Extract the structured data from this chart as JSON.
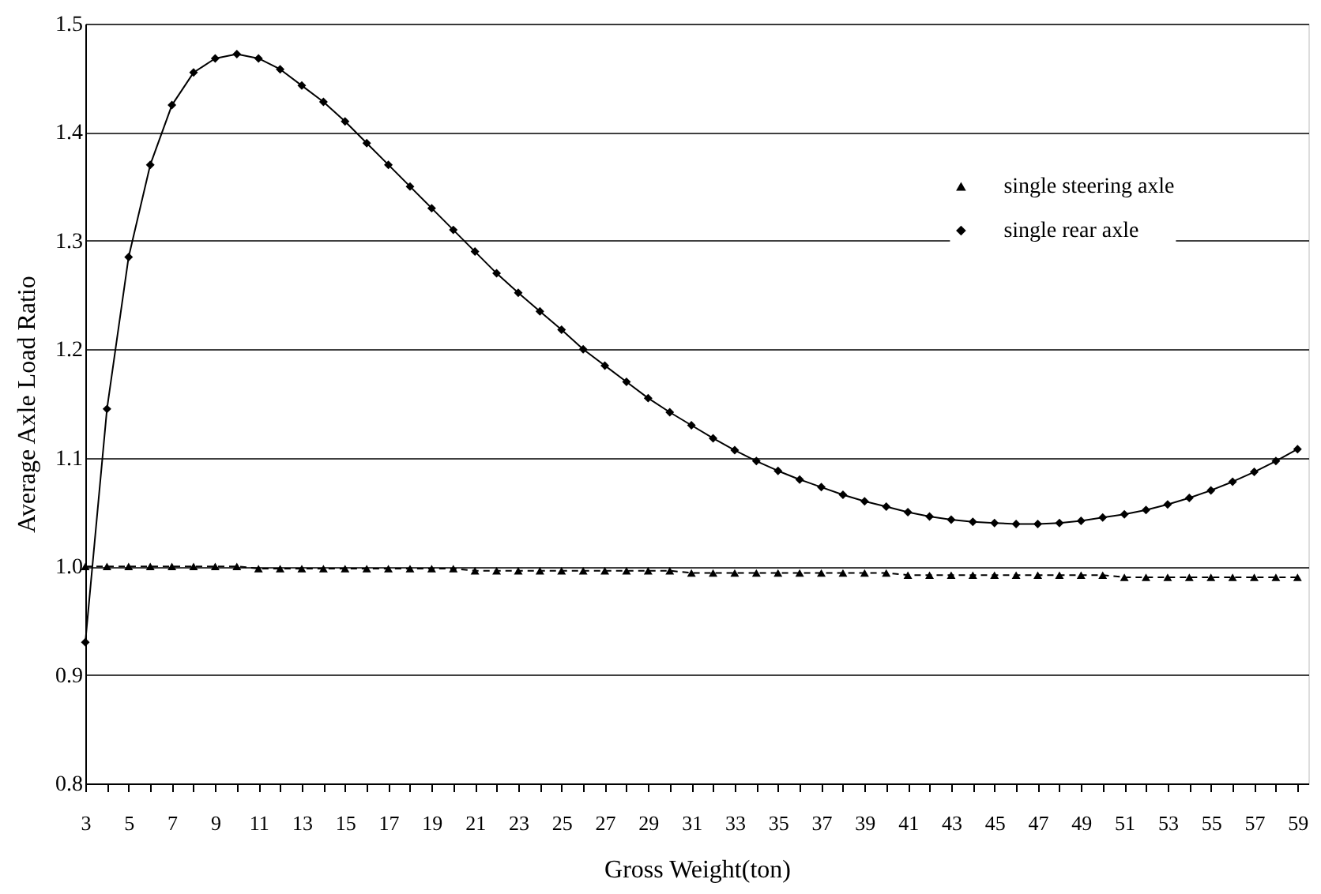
{
  "chart_data": {
    "type": "line",
    "xlabel": "Gross Weight(ton)",
    "ylabel": "Average Axle Load Ratio",
    "x": [
      3,
      4,
      5,
      6,
      7,
      8,
      9,
      10,
      11,
      12,
      13,
      14,
      15,
      16,
      17,
      18,
      19,
      20,
      21,
      22,
      23,
      24,
      25,
      26,
      27,
      28,
      29,
      30,
      31,
      32,
      33,
      34,
      35,
      36,
      37,
      38,
      39,
      40,
      41,
      42,
      43,
      44,
      45,
      46,
      47,
      48,
      49,
      50,
      51,
      52,
      53,
      54,
      55,
      56,
      57,
      58,
      59
    ],
    "series": [
      {
        "name": "single steering axle",
        "color": "#000000",
        "marker": "triangle",
        "line_style": "dashed",
        "values": [
          1.0,
          1.0,
          1.0,
          1.0,
          1.0,
          1.0,
          1.0,
          1.0,
          0.998,
          0.998,
          0.998,
          0.998,
          0.998,
          0.998,
          0.998,
          0.998,
          0.998,
          0.998,
          0.996,
          0.996,
          0.996,
          0.996,
          0.996,
          0.996,
          0.996,
          0.996,
          0.996,
          0.996,
          0.994,
          0.994,
          0.994,
          0.994,
          0.994,
          0.994,
          0.994,
          0.994,
          0.994,
          0.994,
          0.992,
          0.992,
          0.992,
          0.992,
          0.992,
          0.992,
          0.992,
          0.992,
          0.992,
          0.992,
          0.99,
          0.99,
          0.99,
          0.99,
          0.99,
          0.99,
          0.99,
          0.99,
          0.99
        ]
      },
      {
        "name": "single rear axle",
        "color": "#000000",
        "marker": "diamond",
        "line_style": "solid",
        "values": [
          0.93,
          1.145,
          1.285,
          1.37,
          1.425,
          1.455,
          1.468,
          1.472,
          1.468,
          1.458,
          1.443,
          1.428,
          1.41,
          1.39,
          1.37,
          1.35,
          1.33,
          1.31,
          1.29,
          1.27,
          1.252,
          1.235,
          1.218,
          1.2,
          1.185,
          1.17,
          1.155,
          1.142,
          1.13,
          1.118,
          1.107,
          1.097,
          1.088,
          1.08,
          1.073,
          1.066,
          1.06,
          1.055,
          1.05,
          1.046,
          1.043,
          1.041,
          1.04,
          1.039,
          1.039,
          1.04,
          1.042,
          1.045,
          1.048,
          1.052,
          1.057,
          1.063,
          1.07,
          1.078,
          1.087,
          1.097,
          1.108
        ]
      }
    ],
    "xlim": [
      3,
      59.5
    ],
    "xticks": [
      3,
      {
        "value": 4,
        "label": null
      },
      5,
      {
        "value": 6,
        "label": null
      },
      7,
      {
        "value": 8,
        "label": null
      },
      9,
      {
        "value": 10,
        "label": null
      },
      11,
      {
        "value": 12,
        "label": null
      },
      13,
      {
        "value": 14,
        "label": null
      },
      15,
      {
        "value": 16,
        "label": null
      },
      17,
      {
        "value": 18,
        "label": null
      },
      19,
      {
        "value": 20,
        "label": null
      },
      21,
      {
        "value": 22,
        "label": null
      },
      23,
      {
        "value": 24,
        "label": null
      },
      25,
      {
        "value": 26,
        "label": null
      },
      27,
      {
        "value": 28,
        "label": null
      },
      29,
      {
        "value": 30,
        "label": null
      },
      31,
      {
        "value": 32,
        "label": null
      },
      33,
      {
        "value": 34,
        "label": null
      },
      35,
      {
        "value": 36,
        "label": null
      },
      37,
      {
        "value": 38,
        "label": null
      },
      39,
      {
        "value": 40,
        "label": null
      },
      41,
      {
        "value": 42,
        "label": null
      },
      43,
      {
        "value": 44,
        "label": null
      },
      45,
      {
        "value": 46,
        "label": null
      },
      47,
      {
        "value": 48,
        "label": null
      },
      49,
      {
        "value": 50,
        "label": null
      },
      51,
      {
        "value": 52,
        "label": null
      },
      53,
      {
        "value": 54,
        "label": null
      },
      55,
      {
        "value": 56,
        "label": null
      },
      57,
      {
        "value": 58,
        "label": null
      },
      59
    ],
    "ylim": [
      0.8,
      1.5
    ],
    "yticks": [
      {
        "value": 0.8,
        "label": "0.8"
      },
      {
        "value": 0.9,
        "label": "0.9"
      },
      {
        "value": 1.0,
        "label": "1.0"
      },
      {
        "value": 1.1,
        "label": "1.1"
      },
      {
        "value": 1.2,
        "label": "1.2"
      },
      {
        "value": 1.3,
        "label": "1.3"
      },
      {
        "value": 1.4,
        "label": "1.4"
      },
      {
        "value": 1.5,
        "label": "1.5"
      }
    ],
    "grid": "y",
    "legend": "top right"
  }
}
